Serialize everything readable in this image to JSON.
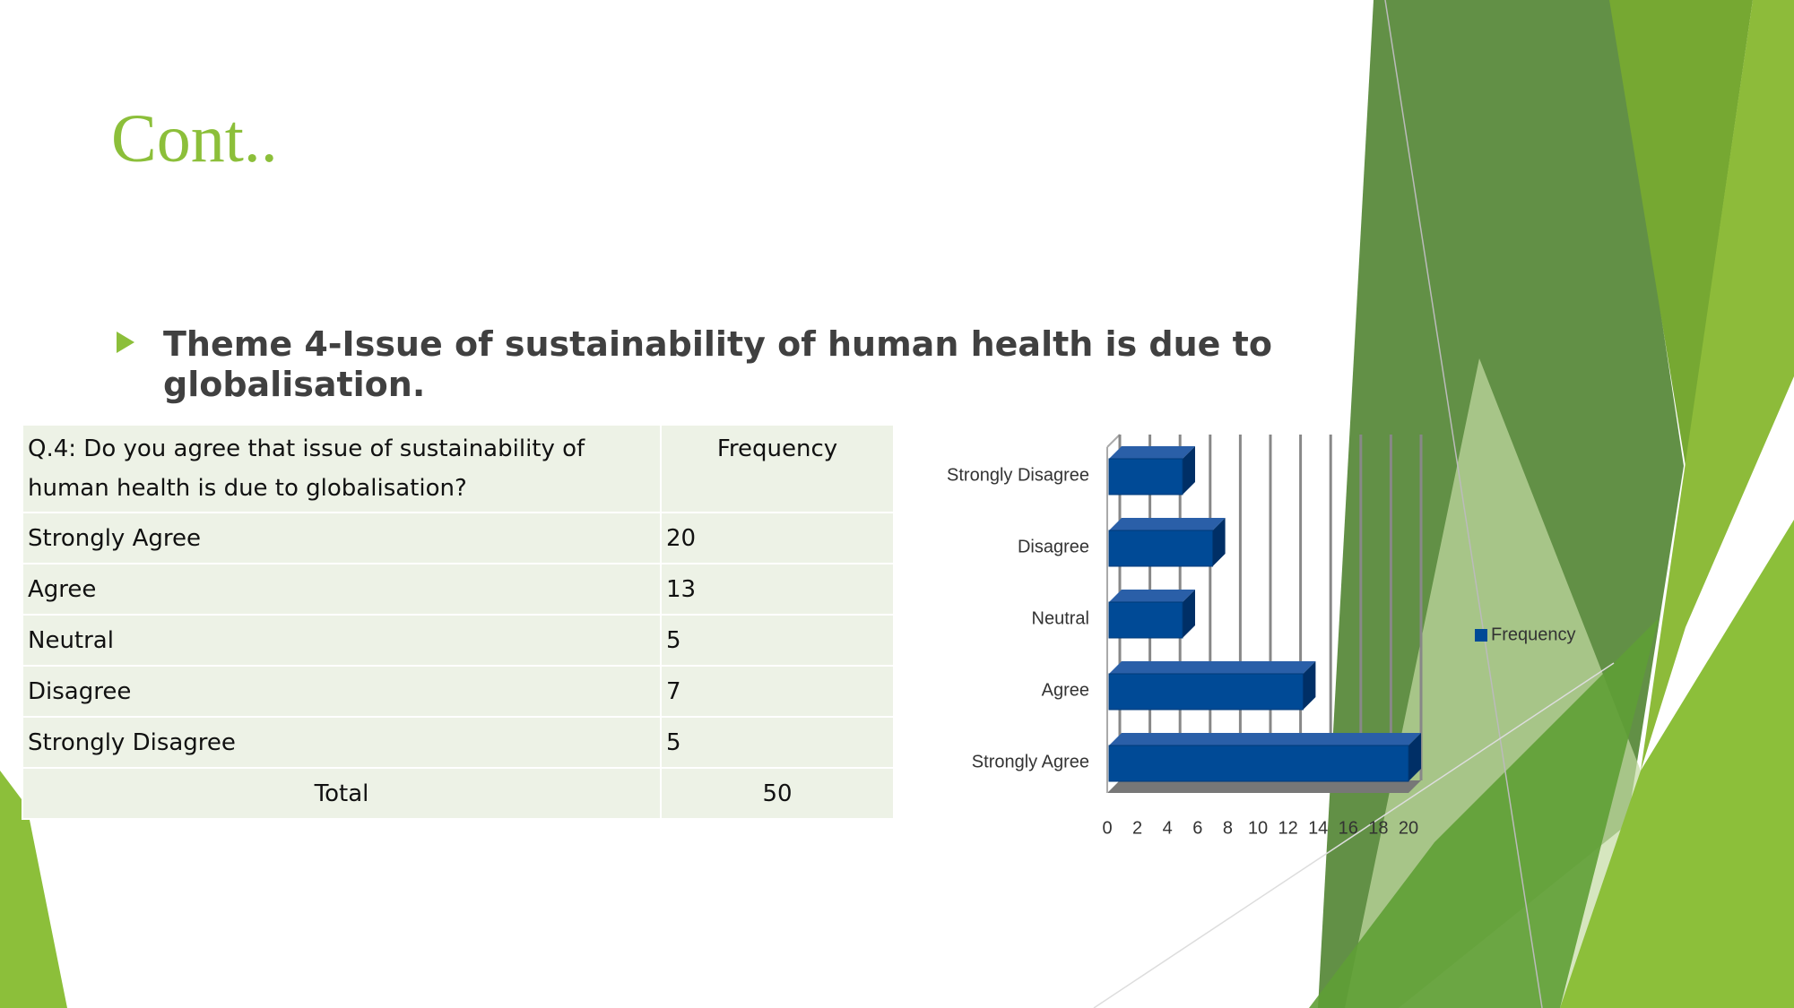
{
  "title": "Cont..",
  "bullet": "Theme 4-Issue of sustainability of human health is due to globalisation.",
  "table": {
    "header": [
      "Q.4: Do you agree that issue of sustainability of human health is due to globalisation?",
      "Frequency"
    ],
    "rows": [
      [
        "Strongly Agree",
        20
      ],
      [
        "Agree",
        13
      ],
      [
        "Neutral",
        5
      ],
      [
        "Disagree",
        7
      ],
      [
        "Strongly Disagree",
        5
      ]
    ],
    "total": [
      "Total",
      50
    ]
  },
  "chart_data": {
    "type": "bar",
    "orientation": "horizontal",
    "categories": [
      "Strongly Disagree",
      "Disagree",
      "Neutral",
      "Agree",
      "Strongly Agree"
    ],
    "series": [
      {
        "name": "Frequency",
        "color": "#004a96",
        "values": [
          5,
          7,
          5,
          13,
          20
        ]
      }
    ],
    "xlim": [
      0,
      20
    ],
    "xticks": [
      0,
      2,
      4,
      6,
      8,
      10,
      12,
      14,
      16,
      18,
      20
    ],
    "grid": true,
    "legend": "right"
  }
}
